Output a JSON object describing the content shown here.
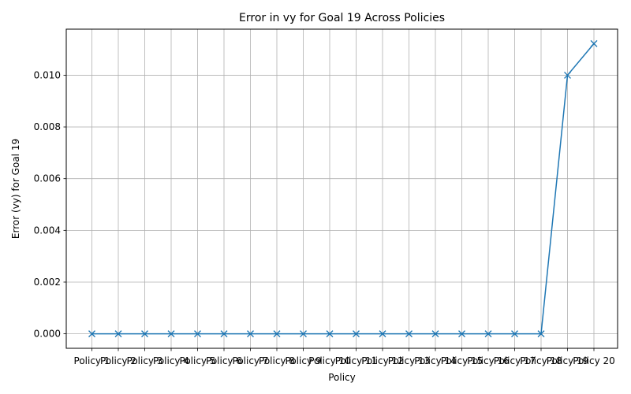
{
  "chart_data": {
    "type": "line",
    "title": "Error in vy for Goal 19 Across Policies",
    "xlabel": "Policy",
    "ylabel": "Error (vy) for Goal 19",
    "categories": [
      "Policy 1",
      "Policy 2",
      "Policy 3",
      "Policy 4",
      "Policy 5",
      "Policy 6",
      "Policy 7",
      "Policy 8",
      "Policy 9",
      "Policy 10",
      "Policy 11",
      "Policy 12",
      "Policy 13",
      "Policy 14",
      "Policy 15",
      "Policy 16",
      "Policy 17",
      "Policy 18",
      "Policy 19",
      "Policy 20"
    ],
    "values": [
      0,
      0,
      0,
      0,
      0,
      0,
      0,
      0,
      0,
      0,
      0,
      0,
      0,
      0,
      0,
      0,
      0,
      0,
      0.01,
      0.01122
    ],
    "ylim": [
      -0.00056,
      0.01178
    ],
    "yticks": [
      0.0,
      0.002,
      0.004,
      0.006,
      0.008,
      0.01
    ],
    "ytick_labels": [
      "0.000",
      "0.002",
      "0.004",
      "0.006",
      "0.008",
      "0.010"
    ],
    "grid": true,
    "marker": "x",
    "line_color": "#1f77b4"
  }
}
